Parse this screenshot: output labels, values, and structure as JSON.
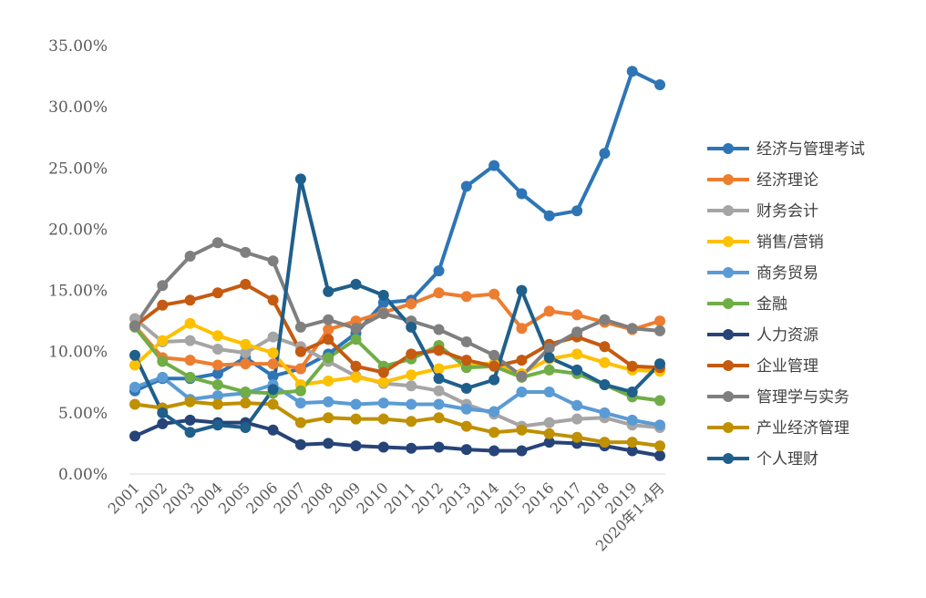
{
  "chart_data": {
    "type": "line",
    "title": "",
    "xlabel": "",
    "ylabel": "",
    "ylim": [
      0,
      35
    ],
    "y_ticks": [
      "0.00%",
      "5.00%",
      "10.00%",
      "15.00%",
      "20.00%",
      "25.00%",
      "30.00%",
      "35.00%"
    ],
    "grid": false,
    "legend_position": "right",
    "categories": [
      "2001",
      "2002",
      "2003",
      "2004",
      "2005",
      "2006",
      "2007",
      "2008",
      "2009",
      "2010",
      "2011",
      "2012",
      "2013",
      "2014",
      "2015",
      "2016",
      "2017",
      "2018",
      "2019",
      "2020年1-4月"
    ],
    "series": [
      {
        "name": "经济与管理考试",
        "color": "#2E75B6",
        "values": [
          6.8,
          7.8,
          7.8,
          8.2,
          9.5,
          8.0,
          8.6,
          9.8,
          11.5,
          14.0,
          14.2,
          16.6,
          23.5,
          25.2,
          22.9,
          21.1,
          21.5,
          26.2,
          32.9,
          31.8
        ]
      },
      {
        "name": "经济理论",
        "color": "#ED7D31",
        "values": [
          12.1,
          9.5,
          9.3,
          8.9,
          9.0,
          9.0,
          8.6,
          11.8,
          12.5,
          13.2,
          13.9,
          14.8,
          14.5,
          14.7,
          11.9,
          13.3,
          13.0,
          12.4,
          11.8,
          12.5
        ]
      },
      {
        "name": "财务会计",
        "color": "#A5A5A5",
        "values": [
          12.7,
          10.8,
          10.9,
          10.2,
          9.9,
          11.2,
          10.4,
          9.2,
          8.0,
          7.4,
          7.2,
          6.8,
          5.7,
          4.9,
          3.9,
          4.2,
          4.5,
          4.6,
          4.0,
          3.8
        ]
      },
      {
        "name": "销售/营销",
        "color": "#FFC000",
        "values": [
          8.9,
          10.9,
          12.3,
          11.3,
          10.6,
          9.9,
          7.3,
          7.6,
          7.9,
          7.5,
          8.1,
          8.6,
          9.0,
          9.0,
          8.2,
          9.4,
          9.8,
          9.1,
          8.5,
          8.4
        ]
      },
      {
        "name": "商务贸易",
        "color": "#5B9BD5",
        "values": [
          7.1,
          7.9,
          6.1,
          6.4,
          6.6,
          7.3,
          5.8,
          5.9,
          5.7,
          5.8,
          5.7,
          5.7,
          5.3,
          5.1,
          6.7,
          6.7,
          5.6,
          5.0,
          4.4,
          4.0
        ]
      },
      {
        "name": "金融",
        "color": "#70AD47",
        "values": [
          12.0,
          9.2,
          7.9,
          7.3,
          6.7,
          6.6,
          6.8,
          9.5,
          11.0,
          8.8,
          9.4,
          10.5,
          8.7,
          8.8,
          7.9,
          8.5,
          8.2,
          7.3,
          6.3,
          6.0
        ]
      },
      {
        "name": "人力资源",
        "color": "#264478",
        "values": [
          3.1,
          4.1,
          4.4,
          4.2,
          4.2,
          3.6,
          2.4,
          2.5,
          2.3,
          2.2,
          2.1,
          2.2,
          2.0,
          1.9,
          1.9,
          2.6,
          2.5,
          2.3,
          1.9,
          1.5
        ]
      },
      {
        "name": "企业管理",
        "color": "#C55A11",
        "values": [
          12.1,
          13.8,
          14.2,
          14.8,
          15.5,
          14.2,
          10.0,
          11.0,
          8.8,
          8.3,
          9.8,
          10.1,
          9.3,
          8.8,
          9.3,
          10.6,
          11.2,
          10.4,
          8.8,
          8.7
        ]
      },
      {
        "name": "管理学与实务",
        "color": "#7F7F7F",
        "values": [
          12.1,
          15.4,
          17.8,
          18.9,
          18.1,
          17.4,
          12.0,
          12.6,
          11.9,
          13.1,
          12.5,
          11.8,
          10.8,
          9.7,
          8.0,
          10.3,
          11.6,
          12.6,
          11.9,
          11.7
        ]
      },
      {
        "name": "产业经济管理",
        "color": "#BF9000",
        "values": [
          5.7,
          5.4,
          5.9,
          5.7,
          5.8,
          5.7,
          4.2,
          4.6,
          4.5,
          4.5,
          4.3,
          4.6,
          3.9,
          3.4,
          3.6,
          3.3,
          3.0,
          2.6,
          2.6,
          2.3
        ]
      },
      {
        "name": "个人理财",
        "color": "#1F5F8B",
        "values": [
          9.7,
          5.0,
          3.4,
          4.0,
          3.8,
          6.9,
          24.1,
          14.9,
          15.5,
          14.6,
          12.0,
          7.8,
          7.0,
          7.7,
          15.0,
          9.5,
          8.5,
          7.3,
          6.7,
          9.0
        ]
      }
    ]
  }
}
